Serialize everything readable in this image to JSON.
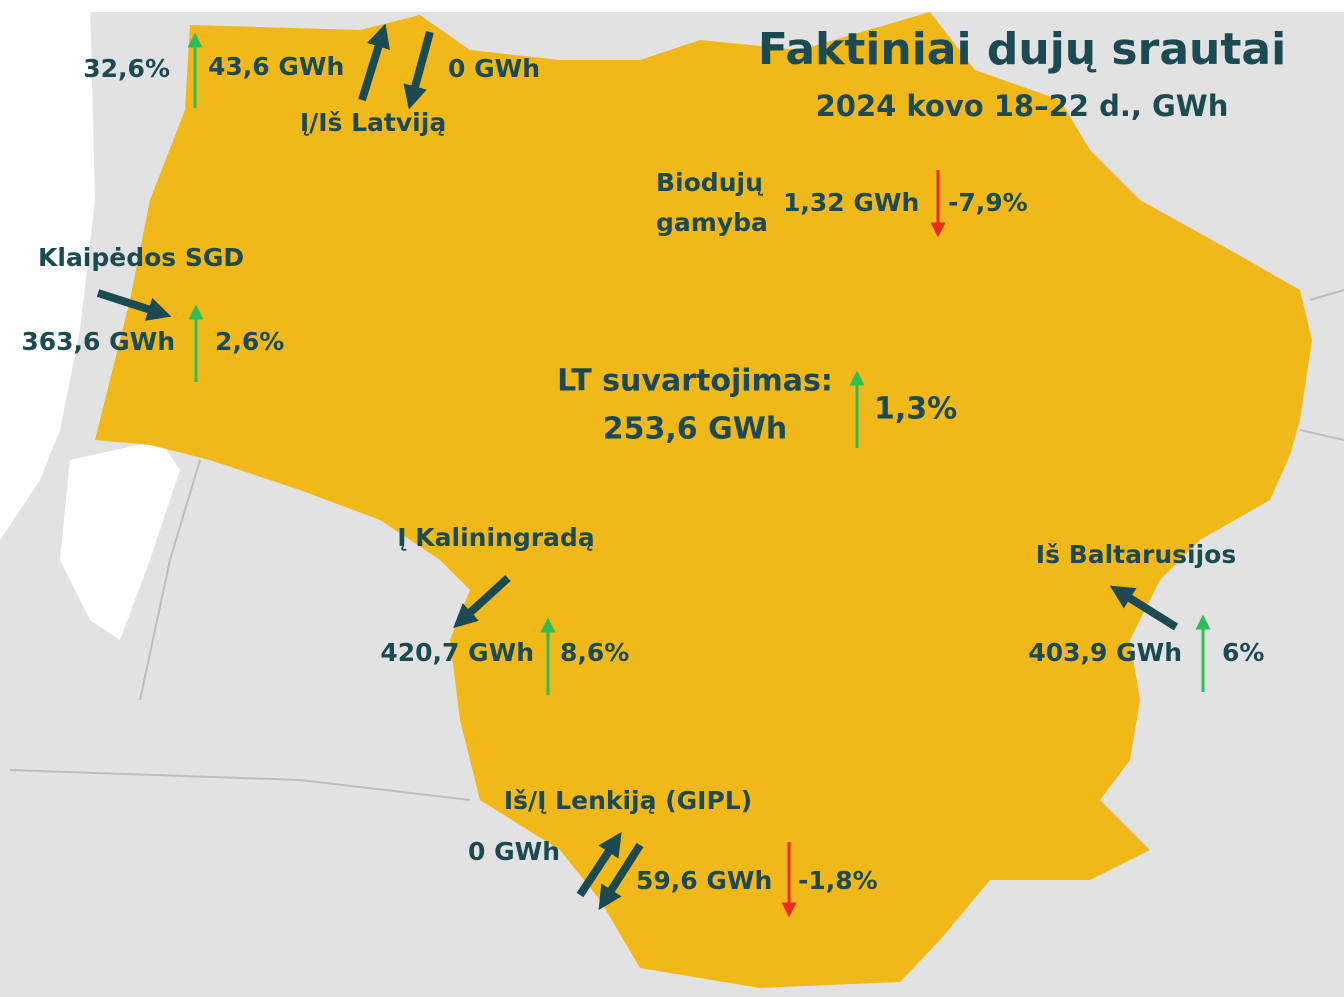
{
  "title": "Faktiniai dujų srautai",
  "subtitle": "2024 kovo 18–22 d., GWh",
  "latvia": {
    "label": "Į/Iš Latviją",
    "in_value": "43,6 GWh",
    "out_value": "0 GWh",
    "change": "32,6%"
  },
  "biogas": {
    "label_line1": "Biodujų",
    "label_line2": "gamyba",
    "value": "1,32 GWh",
    "change": "-7,9%"
  },
  "klaipeda": {
    "label": "Klaipėdos SGD",
    "value": "363,6 GWh",
    "change": "2,6%"
  },
  "consumption": {
    "label": "LT suvartojimas:",
    "value": "253,6 GWh",
    "change": "1,3%"
  },
  "kaliningrad": {
    "label": "Į Kaliningradą",
    "value": "420,7 GWh",
    "change": "8,6%"
  },
  "belarus": {
    "label": "Iš Baltarusijos",
    "value": "403,9 GWh",
    "change": "6%"
  },
  "poland": {
    "label": "Iš/Į Lenkiją (GIPL)",
    "in_value": "0 GWh",
    "out_value": "59,6 GWh",
    "change": "-1,8%"
  }
}
